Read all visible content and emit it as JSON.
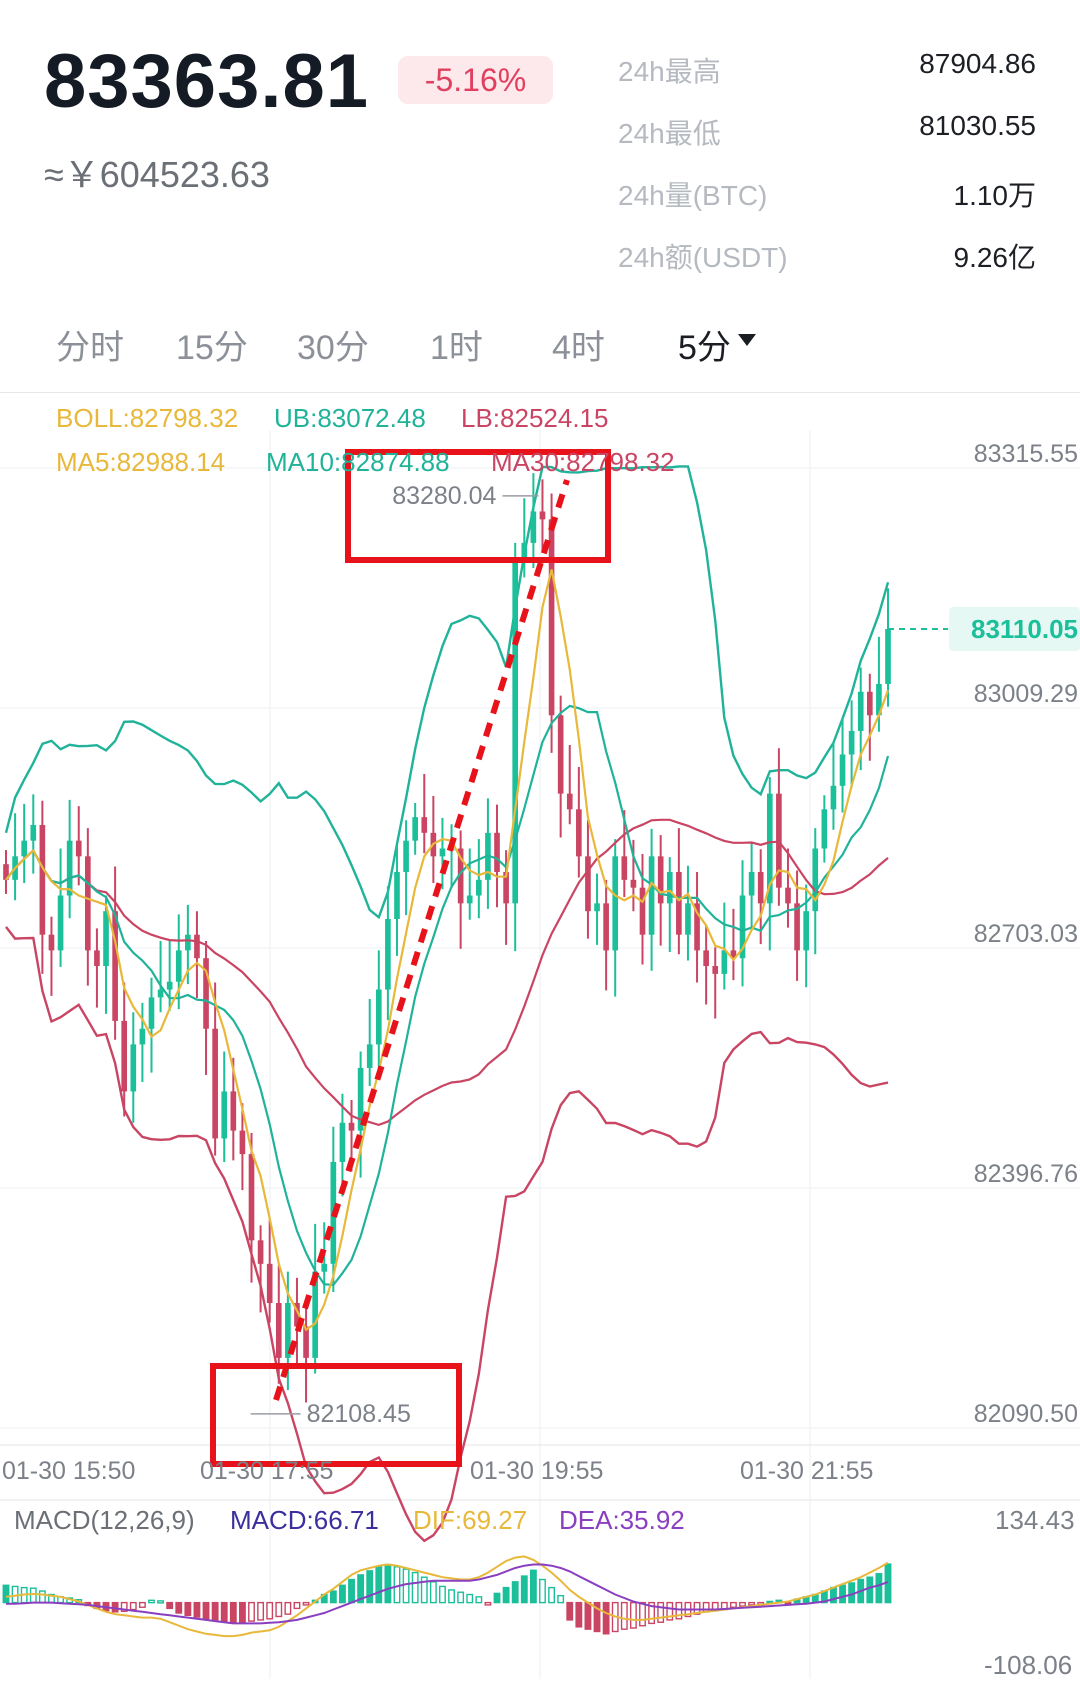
{
  "header": {
    "price": "83363.81",
    "change": "-5.16%",
    "cny": "≈￥604523.63",
    "stats": [
      {
        "label": "24h最高",
        "value": "87904.86"
      },
      {
        "label": "24h最低",
        "value": "81030.55"
      },
      {
        "label": "24h量(BTC)",
        "value": "1.10万"
      },
      {
        "label": "24h额(USDT)",
        "value": "9.26亿"
      }
    ]
  },
  "tabs": [
    {
      "label": "分时"
    },
    {
      "label": "15分"
    },
    {
      "label": "30分"
    },
    {
      "label": "1时"
    },
    {
      "label": "4时"
    },
    {
      "label": "5分",
      "active": true
    }
  ],
  "legend": {
    "boll": "BOLL:82798.32",
    "ub": "UB:83072.48",
    "lb": "LB:82524.15",
    "ma5": "MA5:82988.14",
    "ma10": "MA10:82874.88",
    "ma30": "MA30:82798.32"
  },
  "macd_legend": {
    "title": "MACD(12,26,9)",
    "macd": "MACD:66.71",
    "dif": "DIF:69.27",
    "dea": "DEA:35.92",
    "top": "134.43",
    "bottom": "-108.06"
  },
  "colors": {
    "up": "#1bbf9a",
    "down": "#c94563",
    "ma5": "#e8b83a",
    "ma10": "#20b39a",
    "ma30": "#c94563",
    "dif": "#e8b83a",
    "dea": "#8a3fc0",
    "annotation": "#e8121b"
  },
  "chart_data": [
    {
      "type": "candlestick",
      "interval": "5分",
      "y_ticks": [
        "83315.55",
        "83009.29",
        "82703.03",
        "82396.76",
        "82090.50"
      ],
      "x_ticks": [
        "01-30 15:50",
        "01-30 17:55",
        "01-30 19:55",
        "01-30 21:55"
      ],
      "ylim": [
        82090.5,
        83315.55
      ],
      "last_price": "83110.05",
      "high_marker": "83280.04",
      "low_marker": "82108.45",
      "grid": true,
      "close": [
        82790,
        82820,
        82840,
        82860,
        82720,
        82700,
        82770,
        82840,
        82820,
        82700,
        82680,
        82750,
        82610,
        82520,
        82580,
        82600,
        82640,
        82650,
        82660,
        82700,
        82720,
        82690,
        82600,
        82460,
        82520,
        82470,
        82440,
        82330,
        82300,
        82250,
        82180,
        82250,
        82220,
        82180,
        82290,
        82300,
        82430,
        82480,
        82470,
        82550,
        82580,
        82650,
        82740,
        82800,
        82840,
        82870,
        82850,
        82820,
        82830,
        82830,
        82760,
        82770,
        82790,
        82850,
        82800,
        82760,
        83200,
        83220,
        83260,
        83250,
        83000,
        82900,
        82880,
        82820,
        82750,
        82760,
        82700,
        82820,
        82790,
        82780,
        82720,
        82820,
        82760,
        82800,
        82720,
        82760,
        82700,
        82680,
        82670,
        82700,
        82690,
        82770,
        82800,
        82760,
        82900,
        82780,
        82760,
        82700,
        82750,
        82830,
        82880,
        82910,
        82950,
        82980,
        83030,
        83000,
        83040,
        83110.05
      ]
    },
    {
      "type": "bar",
      "name": "MACD",
      "values": [
        30,
        28,
        26,
        25,
        20,
        14,
        10,
        8,
        5,
        -5,
        -10,
        -14,
        -16,
        -15,
        -12,
        -8,
        4,
        3,
        -10,
        -18,
        -22,
        -25,
        -28,
        -30,
        -32,
        -34,
        -35,
        -32,
        -30,
        -28,
        -24,
        -20,
        -10,
        -4,
        4,
        14,
        20,
        30,
        40,
        48,
        55,
        62,
        66,
        62,
        58,
        52,
        44,
        36,
        28,
        22,
        18,
        14,
        10,
        -4,
        16,
        26,
        36,
        46,
        56,
        40,
        26,
        12,
        -30,
        -42,
        -46,
        -50,
        -54,
        -50,
        -46,
        -44,
        -40,
        -36,
        -34,
        -30,
        -28,
        -24,
        -20,
        -16,
        -14,
        -12,
        -8,
        -6,
        -4,
        -2,
        2,
        4,
        -4,
        6,
        10,
        14,
        20,
        26,
        30,
        34,
        40,
        44,
        50,
        66.71
      ]
    },
    {
      "type": "line",
      "name": "DIF",
      "values": [
        10,
        12,
        14,
        15,
        14,
        12,
        10,
        6,
        2,
        -4,
        -10,
        -16,
        -20,
        -22,
        -24,
        -26,
        -26,
        -28,
        -34,
        -40,
        -46,
        -50,
        -54,
        -56,
        -58,
        -58,
        -56,
        -52,
        -50,
        -48,
        -42,
        -32,
        -22,
        -10,
        2,
        14,
        24,
        36,
        48,
        56,
        60,
        64,
        66,
        64,
        60,
        56,
        52,
        48,
        44,
        42,
        40,
        40,
        44,
        52,
        62,
        72,
        78,
        80,
        74,
        64,
        52,
        38,
        22,
        10,
        0,
        -10,
        -18,
        -24,
        -28,
        -30,
        -30,
        -28,
        -26,
        -24,
        -22,
        -20,
        -18,
        -16,
        -14,
        -12,
        -10,
        -8,
        -6,
        -4,
        -2,
        0,
        2,
        6,
        10,
        14,
        20,
        26,
        32,
        38,
        44,
        52,
        60,
        69.27
      ]
    },
    {
      "type": "line",
      "name": "DEA",
      "values": [
        -2,
        -2,
        -1,
        0,
        0,
        0,
        -1,
        -2,
        -3,
        -4,
        -6,
        -8,
        -10,
        -12,
        -14,
        -16,
        -18,
        -20,
        -22,
        -24,
        -26,
        -28,
        -30,
        -32,
        -34,
        -36,
        -36,
        -36,
        -36,
        -35,
        -34,
        -32,
        -30,
        -26,
        -22,
        -18,
        -12,
        -6,
        0,
        6,
        12,
        18,
        24,
        28,
        32,
        34,
        36,
        38,
        38,
        38,
        38,
        38,
        40,
        44,
        48,
        54,
        60,
        64,
        66,
        66,
        64,
        60,
        54,
        46,
        38,
        30,
        22,
        14,
        8,
        2,
        -2,
        -6,
        -8,
        -10,
        -12,
        -12,
        -12,
        -12,
        -12,
        -11,
        -10,
        -9,
        -8,
        -7,
        -6,
        -5,
        -4,
        -3,
        -2,
        0,
        2,
        6,
        10,
        14,
        20,
        26,
        30,
        35.92
      ]
    }
  ]
}
